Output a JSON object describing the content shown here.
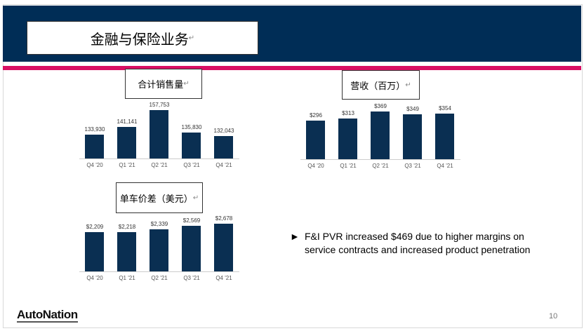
{
  "slide": {
    "title": "金融与保险业务",
    "page_number": "10",
    "logo_text": "AutoNation",
    "bullet": "F&I PVR increased $469 due to higher margins on service contracts and increased product penetration"
  },
  "colors": {
    "header": "#002d56",
    "accent": "#d90f63",
    "bar": "#0a2f52"
  },
  "chart_data": [
    {
      "type": "bar",
      "title": "合计销售量",
      "categories": [
        "Q4 '20",
        "Q1 '21",
        "Q2 '21",
        "Q3 '21",
        "Q4 '21"
      ],
      "values": [
        133930,
        141141,
        157753,
        135830,
        132043
      ],
      "labels": [
        "133,930",
        "141,141",
        "157,753",
        "135,830",
        "132,043"
      ],
      "ylim": [
        110000,
        160000
      ]
    },
    {
      "type": "bar",
      "title": "营收（百万）",
      "categories": [
        "Q4 '20",
        "Q1 '21",
        "Q2 '21",
        "Q3 '21",
        "Q4 '21"
      ],
      "values": [
        296,
        313,
        369,
        349,
        354
      ],
      "labels": [
        "$296",
        "$313",
        "$369",
        "$349",
        "$354"
      ],
      "ylim": [
        0,
        380
      ]
    },
    {
      "type": "bar",
      "title": "单车价差（美元）",
      "categories": [
        "Q4 '20",
        "Q1 '21",
        "Q2 '21",
        "Q3 '21",
        "Q4 '21"
      ],
      "values": [
        2209,
        2218,
        2339,
        2569,
        2678
      ],
      "labels": [
        "$2,209",
        "$2,218",
        "$2,339",
        "$2,569",
        "$2,678"
      ],
      "ylim": [
        0,
        2750
      ]
    }
  ]
}
